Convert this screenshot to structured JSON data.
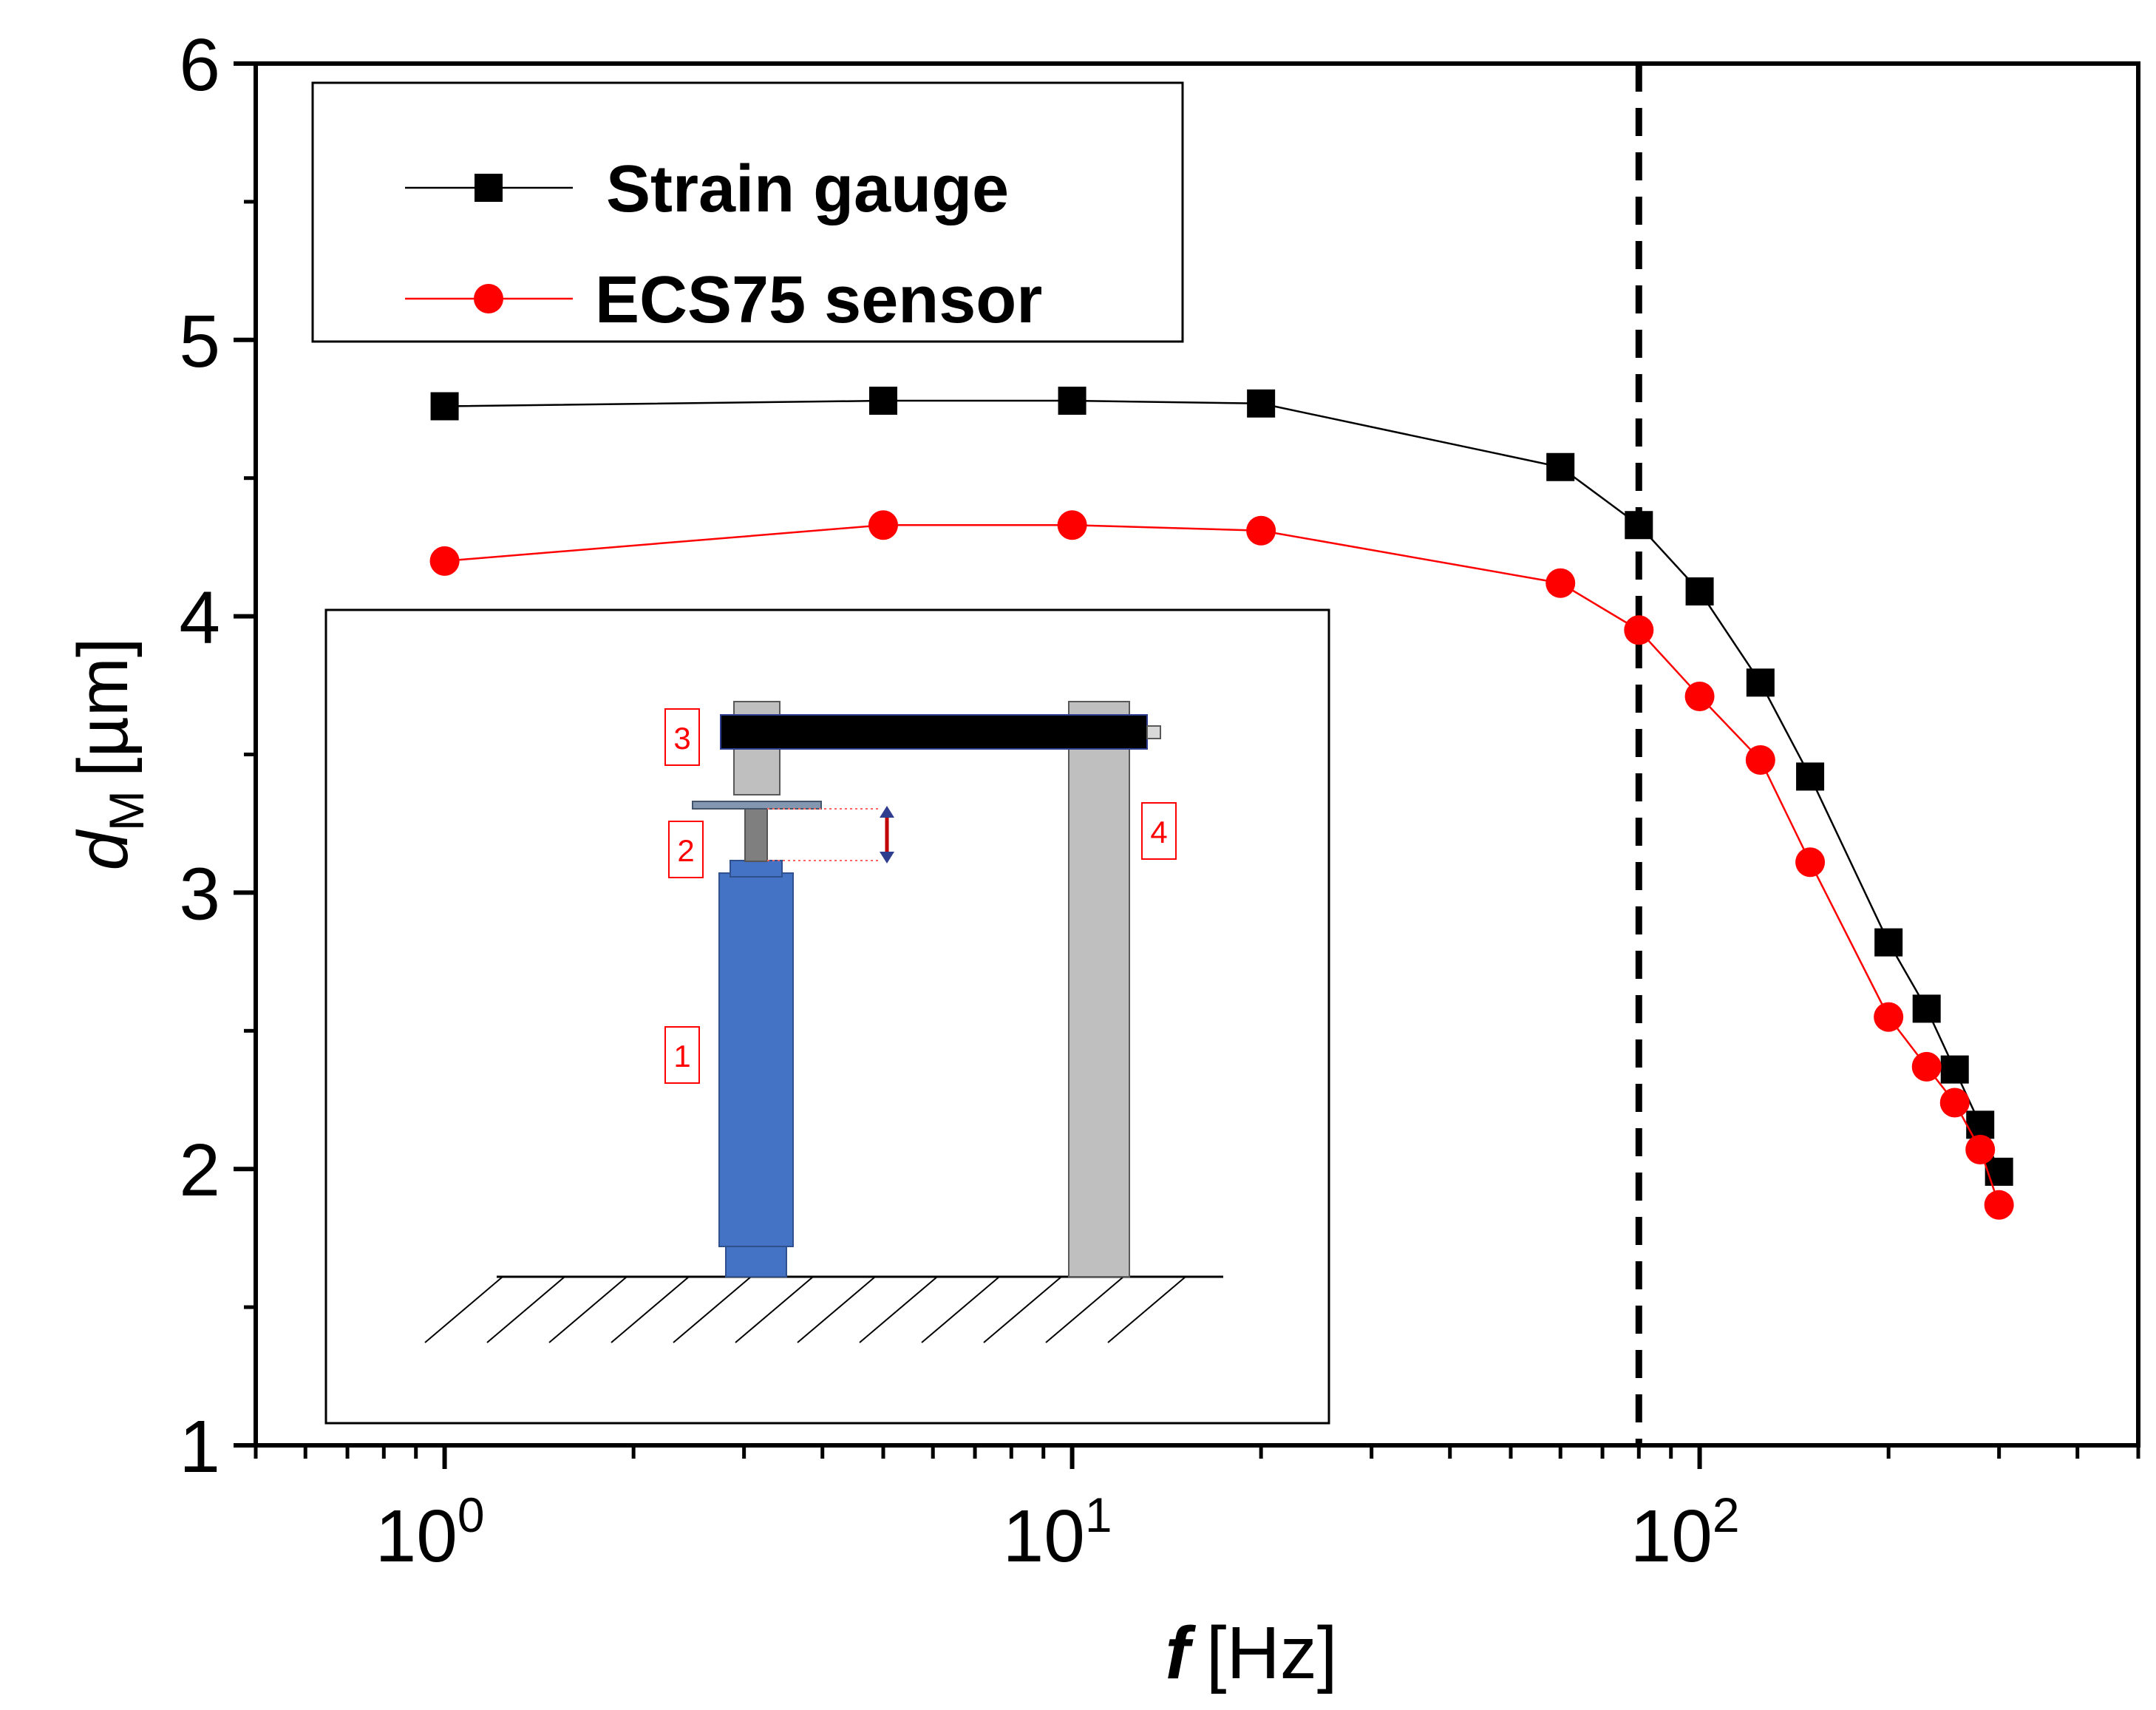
{
  "chart_data": {
    "type": "line",
    "xscale": "log",
    "xlim": [
      0.5,
      500
    ],
    "ylim": [
      1,
      6
    ],
    "xlabel": "f [Hz]",
    "xlabel_var": "f",
    "xlabel_unit": "[Hz]",
    "ylabel_var": "d",
    "ylabel_sub": "M",
    "ylabel_unit": "[µm]",
    "yticks": [
      1,
      2,
      3,
      4,
      5,
      6
    ],
    "xticks": [
      {
        "value": 1,
        "base": "10",
        "exp": "0"
      },
      {
        "value": 10,
        "base": "10",
        "exp": "1"
      },
      {
        "value": 100,
        "base": "10",
        "exp": "2"
      }
    ],
    "vline_x": 80,
    "legend_position": "top-left",
    "series": [
      {
        "name": "Strain gauge",
        "color": "#000000",
        "marker": "square",
        "x": [
          1,
          5,
          10,
          20,
          60,
          80,
          100,
          125,
          150,
          200,
          230,
          255,
          280,
          300
        ],
        "y": [
          4.76,
          4.78,
          4.78,
          4.77,
          4.54,
          4.33,
          4.09,
          3.76,
          3.42,
          2.82,
          2.58,
          2.36,
          2.16,
          1.99
        ]
      },
      {
        "name": "ECS75 sensor",
        "color": "#ff0000",
        "marker": "circle",
        "x": [
          1,
          5,
          10,
          20,
          60,
          80,
          100,
          125,
          150,
          200,
          230,
          255,
          280,
          300
        ],
        "y": [
          4.2,
          4.33,
          4.33,
          4.31,
          4.12,
          3.95,
          3.71,
          3.48,
          3.11,
          2.55,
          2.37,
          2.24,
          2.07,
          1.87
        ]
      }
    ]
  },
  "inset": {
    "labels": [
      "1",
      "2",
      "3",
      "4"
    ],
    "label_color": "#ff0000",
    "actuator_color": "#4472c4",
    "post_color": "#bfbfbf",
    "beam_color": "#000000"
  }
}
